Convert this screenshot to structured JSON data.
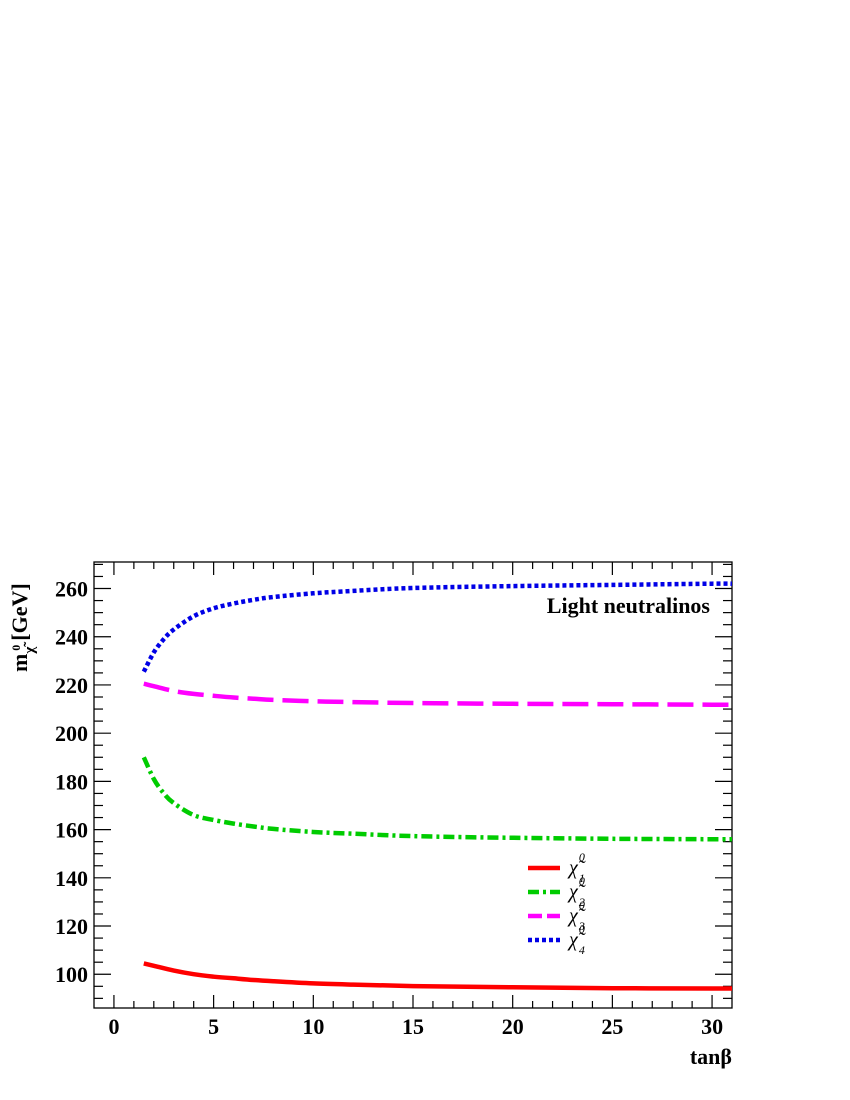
{
  "chart_data": {
    "type": "line",
    "title": "",
    "annotation": "Light neutralinos",
    "xlabel": "tanβ",
    "ylabel": "m",
    "ylabel_sub": "χ̃",
    "ylabel_sup": "0",
    "ylabel_unit": "[GeV]",
    "xlim": [
      -1,
      31
    ],
    "ylim": [
      86,
      271
    ],
    "x_ticks": [
      0,
      5,
      10,
      15,
      20,
      25,
      30
    ],
    "y_ticks": [
      100,
      120,
      140,
      160,
      180,
      200,
      220,
      240,
      260
    ],
    "grid": false,
    "legend_position": "bottom-right",
    "series": [
      {
        "name": "χ̃",
        "name_sup": "0",
        "name_sub": "1",
        "color": "#ff0000",
        "style": "solid",
        "x": [
          1.5,
          2,
          3,
          4,
          5,
          6,
          7,
          8,
          10,
          12,
          15,
          20,
          25,
          30,
          31
        ],
        "y": [
          104.5,
          103.5,
          101.5,
          100,
          99,
          98.3,
          97.6,
          97.1,
          96.2,
          95.7,
          95.1,
          94.6,
          94.2,
          94.1,
          94.1
        ]
      },
      {
        "name": "χ̃",
        "name_sup": "0",
        "name_sub": "2",
        "color": "#00cc00",
        "style": "dashdot",
        "x": [
          1.5,
          2,
          2.5,
          3,
          4,
          5,
          6,
          7,
          8,
          10,
          12,
          15,
          20,
          25,
          30,
          31
        ],
        "y": [
          190,
          181,
          175,
          171,
          166,
          164,
          162.5,
          161.3,
          160.3,
          159,
          158.3,
          157.3,
          156.6,
          156.2,
          156,
          156
        ]
      },
      {
        "name": "χ̃",
        "name_sup": "0",
        "name_sub": "3",
        "color": "#ff00ff",
        "style": "dashed",
        "x": [
          1.5,
          2,
          3,
          4,
          5,
          6,
          7,
          8,
          10,
          12,
          15,
          20,
          25,
          30,
          31
        ],
        "y": [
          220.5,
          219.5,
          217.5,
          216.3,
          215.5,
          214.8,
          214.3,
          213.8,
          213.2,
          212.9,
          212.5,
          212.2,
          212,
          211.8,
          211.8
        ]
      },
      {
        "name": "χ̃",
        "name_sup": "0",
        "name_sub": "4",
        "color": "#0000e6",
        "style": "dotted",
        "x": [
          1.5,
          2,
          2.5,
          3,
          4,
          5,
          6,
          7,
          8,
          10,
          12,
          15,
          20,
          25,
          30,
          31
        ],
        "y": [
          225.5,
          233.5,
          239,
          243,
          248.5,
          251.8,
          253.8,
          255.3,
          256.5,
          258,
          259,
          260.2,
          261,
          261.5,
          262,
          262
        ]
      }
    ]
  }
}
